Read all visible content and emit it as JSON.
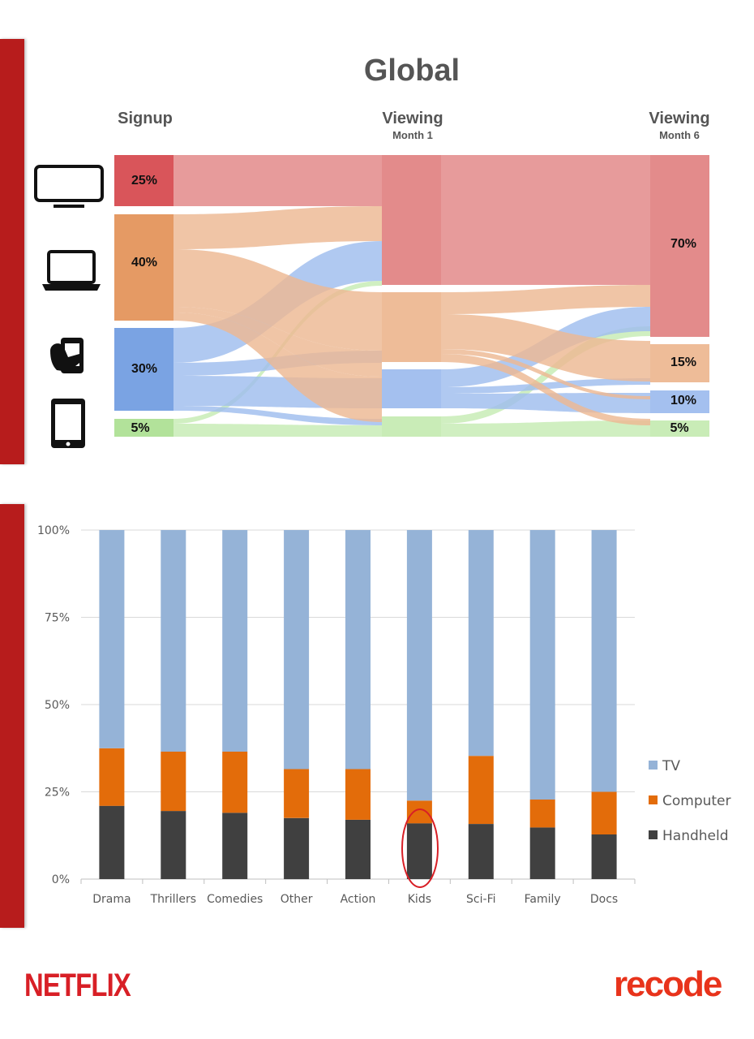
{
  "sankey": {
    "title": "Global",
    "stages": [
      {
        "label": "Signup",
        "sub": ""
      },
      {
        "label": "Viewing",
        "sub": "Month 1"
      },
      {
        "label": "Viewing",
        "sub": "Month 6"
      }
    ],
    "devices": [
      {
        "icon": "tv-icon",
        "color": "#d9555a",
        "flow": "#e28585"
      },
      {
        "icon": "laptop-icon",
        "color": "#e59a64",
        "flow": "#edb892"
      },
      {
        "icon": "handheld-icon",
        "color": "#7aa3e3",
        "flow": "#9fbdee"
      },
      {
        "icon": "tablet-icon",
        "color": "#b2e29a",
        "flow": "#c6ebb3"
      }
    ],
    "signup_labels": [
      "25%",
      "40%",
      "30%",
      "5%"
    ],
    "month6_labels": [
      "70%",
      "15%",
      "10%",
      "5%"
    ]
  },
  "chart_data": {
    "type": "bar",
    "stacked": true,
    "categories": [
      "Drama",
      "Thrillers",
      "Comedies",
      "Other",
      "Action",
      "Kids",
      "Sci-Fi",
      "Family",
      "Docs"
    ],
    "series": [
      {
        "name": "Handheld",
        "color": "#404040",
        "values": [
          21,
          19.5,
          19,
          17.5,
          17,
          16,
          15.8,
          14.8,
          12.8
        ]
      },
      {
        "name": "Computer",
        "color": "#e36c0a",
        "values": [
          16.5,
          17,
          17.5,
          14,
          14.5,
          6.5,
          19.5,
          8,
          12.2
        ]
      },
      {
        "name": "TV",
        "color": "#95b3d7",
        "values": [
          62.5,
          63.5,
          63.5,
          68.5,
          68.5,
          77.5,
          64.7,
          77.2,
          75
        ]
      }
    ],
    "y_ticks": [
      "0%",
      "25%",
      "50%",
      "75%",
      "100%"
    ],
    "ylim": [
      0,
      100
    ],
    "legend": [
      "TV",
      "Computer",
      "Handheld"
    ],
    "legend_position": "right",
    "highlight": "Kids",
    "grid": true
  },
  "brands": {
    "left": "NETFLIX",
    "right": "recode"
  }
}
